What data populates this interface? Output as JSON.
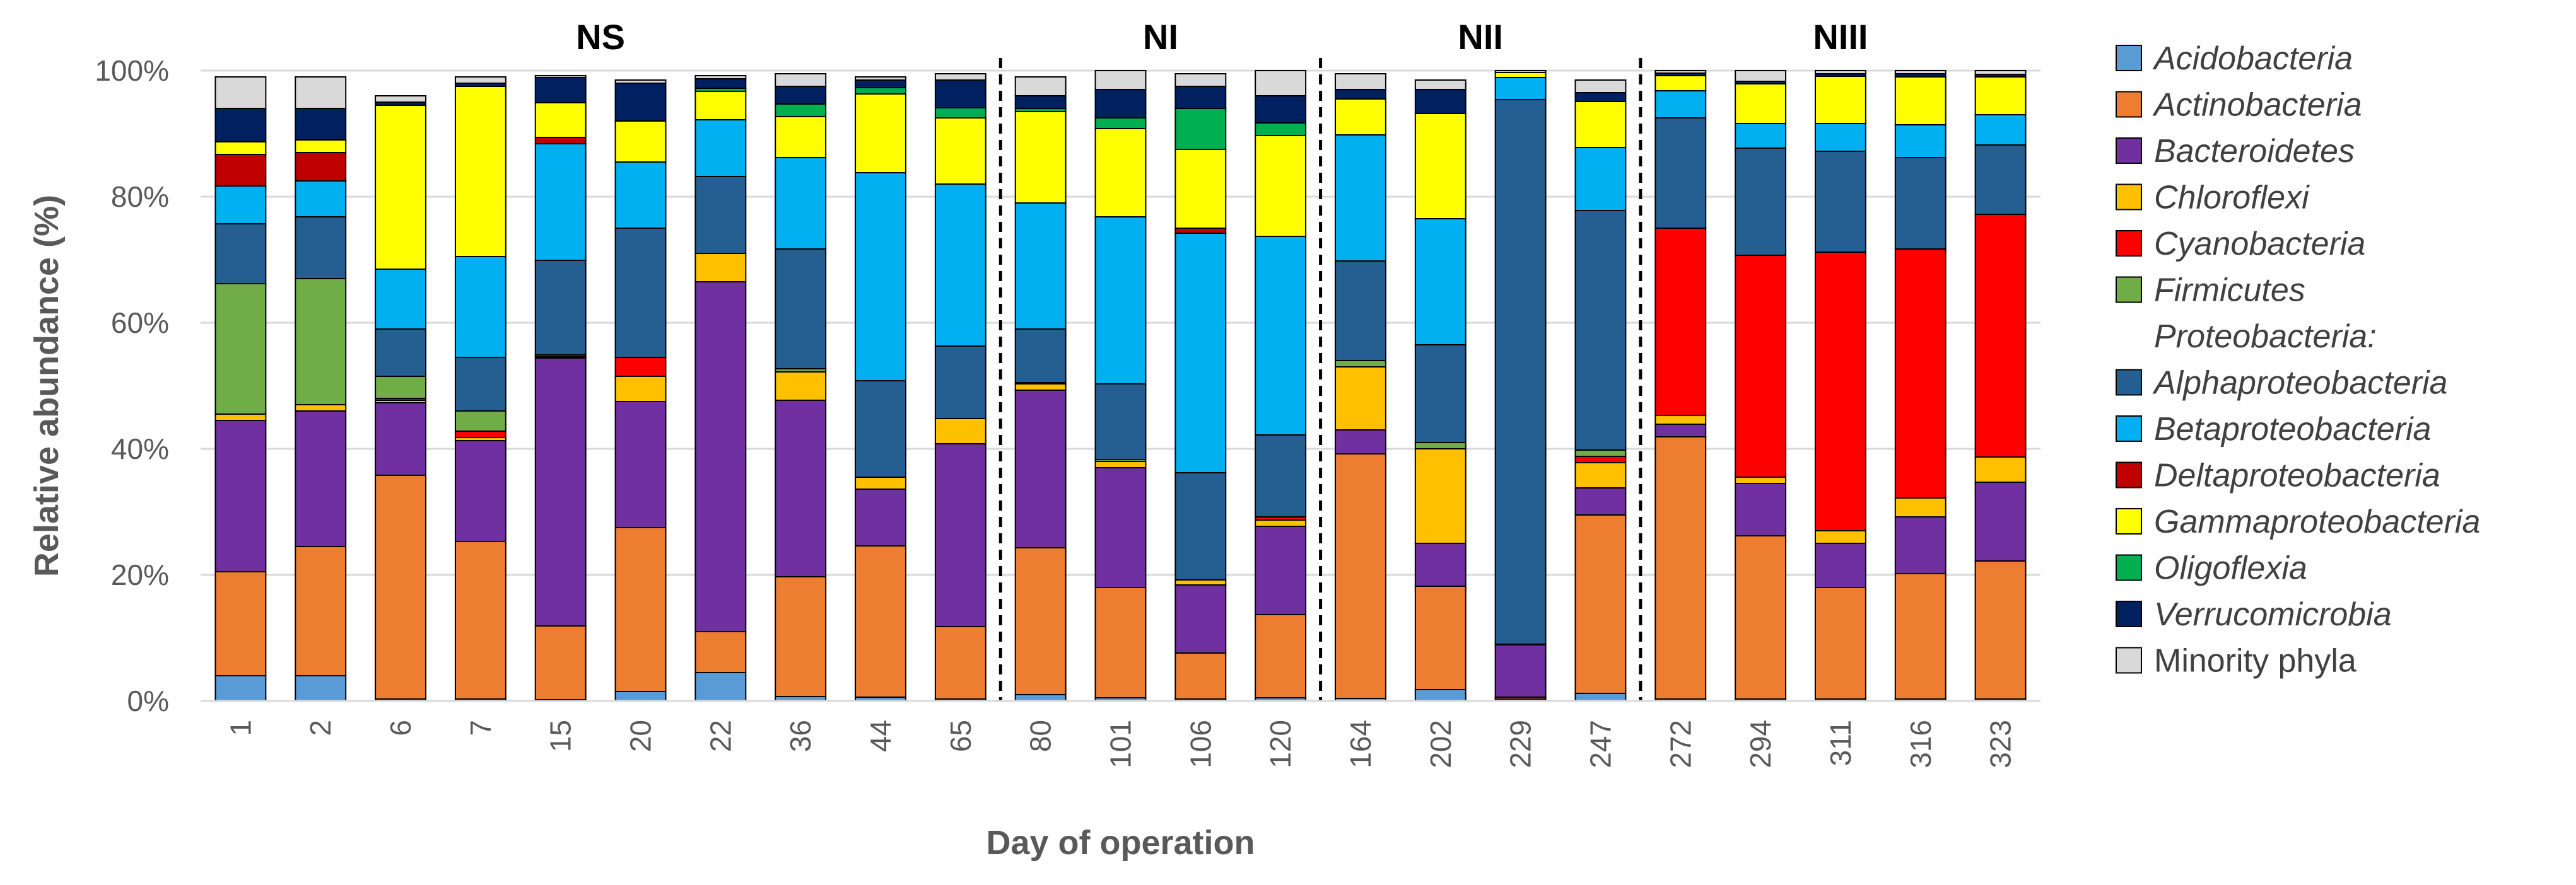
{
  "chart_data": {
    "type": "bar",
    "stacked": true,
    "title": "",
    "xlabel": "Day of operation",
    "ylabel": "Relative abundance (%)",
    "ylim": [
      0,
      100
    ],
    "yticks": [
      "0%",
      "20%",
      "40%",
      "60%",
      "80%",
      "100%"
    ],
    "categories": [
      "1",
      "2",
      "6",
      "7",
      "15",
      "20",
      "22",
      "36",
      "44",
      "65",
      "80",
      "101",
      "106",
      "120",
      "164",
      "202",
      "229",
      "247",
      "272",
      "294",
      "311",
      "316",
      "323"
    ],
    "phases": [
      {
        "label": "NS",
        "start": 0,
        "end": 9
      },
      {
        "label": "NI",
        "start": 10,
        "end": 13
      },
      {
        "label": "NII",
        "start": 14,
        "end": 17
      },
      {
        "label": "NIII",
        "start": 18,
        "end": 22
      }
    ],
    "legend_heading": "Proteobacteria:",
    "series": [
      {
        "name": "Acidobacteria",
        "color": "#5B9BD5",
        "italic": true,
        "values": [
          4,
          4,
          0.3,
          0.3,
          0.2,
          1.5,
          4.5,
          0.7,
          0.6,
          0.3,
          1,
          0.5,
          0.3,
          0.5,
          0.4,
          1.8,
          0.3,
          1.2,
          0.3,
          0.3,
          0.3,
          0.3,
          0.3
        ]
      },
      {
        "name": "Actinobacteria",
        "color": "#ED7D31",
        "italic": true,
        "values": [
          16.5,
          20.5,
          35.5,
          25,
          11.7,
          26,
          6.5,
          19,
          24,
          11.5,
          23.3,
          17.5,
          7.3,
          13.2,
          38.8,
          16.4,
          0.3,
          28.3,
          41.6,
          25.9,
          17.7,
          19.9,
          21.9
        ]
      },
      {
        "name": "Bacteroidetes",
        "color": "#7030A0",
        "italic": true,
        "values": [
          24,
          21.5,
          11.5,
          16,
          42.5,
          20,
          55.5,
          28,
          9,
          29,
          25,
          19,
          10.8,
          14,
          3.8,
          6.8,
          8.3,
          4.3,
          2,
          8.3,
          7,
          9,
          12.5
        ]
      },
      {
        "name": "Chloroflexi",
        "color": "#FFC000",
        "italic": true,
        "values": [
          1,
          1,
          0.4,
          0.5,
          0.2,
          4,
          4.5,
          4.5,
          1.9,
          4,
          1,
          1,
          0.8,
          1,
          10,
          15,
          0.1,
          4,
          1.4,
          1,
          2,
          3,
          4
        ]
      },
      {
        "name": "Cyanobacteria",
        "color": "#FF0000",
        "italic": true,
        "values": [
          0,
          0,
          0.3,
          1,
          0.3,
          3,
          0,
          0,
          0,
          0,
          0,
          0,
          0,
          0.5,
          0,
          0,
          0,
          1,
          29.7,
          35.2,
          44.2,
          39.5,
          38.5
        ]
      },
      {
        "name": "Firmicutes",
        "color": "#70AD47",
        "italic": true,
        "values": [
          20.7,
          20,
          3.5,
          3.2,
          0,
          0,
          0,
          0.5,
          0,
          0,
          0.2,
          0.3,
          0,
          0,
          1,
          1,
          0,
          1,
          0,
          0,
          0,
          0,
          0
        ]
      },
      {
        "name": "Alphaproteobacteria",
        "color": "#255E91",
        "italic": true,
        "values": [
          9.5,
          9.8,
          7.5,
          8.5,
          15,
          20.5,
          12.2,
          19,
          15.3,
          11.5,
          8.5,
          12,
          17,
          13,
          15.8,
          15.5,
          86.4,
          38,
          17.5,
          17,
          16,
          14.5,
          11
        ]
      },
      {
        "name": "Betaproteobacteria",
        "color": "#00B0F0",
        "italic": true,
        "values": [
          6,
          5.7,
          9.5,
          16,
          18.5,
          10.5,
          9,
          14.5,
          33,
          25.7,
          20,
          26.5,
          38,
          31.5,
          20,
          20,
          3.5,
          10,
          4.3,
          3.9,
          4.4,
          5.2,
          4.8
        ]
      },
      {
        "name": "Deltaproteobacteria",
        "color": "#C00000",
        "italic": true,
        "values": [
          5,
          4.5,
          0,
          0,
          1,
          0,
          0,
          0,
          0,
          0,
          0,
          0,
          0.8,
          0,
          0,
          0,
          0,
          0,
          0,
          0,
          0,
          0,
          0
        ]
      },
      {
        "name": "Gammaproteobacteria",
        "color": "#FFFF00",
        "italic": true,
        "values": [
          2,
          2,
          26,
          27,
          5.5,
          6.5,
          4.5,
          6.5,
          12.5,
          10.5,
          14.5,
          14,
          12.5,
          16,
          5.7,
          16.7,
          0.8,
          7.3,
          2.4,
          6.3,
          7.5,
          7.6,
          6
        ]
      },
      {
        "name": "Oligoflexia",
        "color": "#00B050",
        "italic": true,
        "values": [
          0,
          0,
          0,
          0,
          0,
          0,
          0.5,
          2,
          1,
          1.6,
          0.5,
          1.7,
          6.5,
          2,
          0,
          0,
          0,
          0,
          0,
          0,
          0,
          0,
          0
        ]
      },
      {
        "name": "Verrucomicrobia",
        "color": "#002060",
        "italic": true,
        "values": [
          5.3,
          5,
          0.5,
          0.5,
          4,
          6,
          1.5,
          2.8,
          1.2,
          4.4,
          2,
          4.5,
          3.5,
          4.3,
          1.5,
          3.8,
          0,
          1.4,
          0.4,
          0.4,
          0.4,
          0.5,
          0.4
        ]
      },
      {
        "name": "Minority phyla",
        "color": "#D9D9D9",
        "italic": false,
        "values": [
          5,
          5,
          1,
          1,
          0.3,
          0.5,
          0.5,
          2,
          0.5,
          1,
          3,
          3,
          2,
          4,
          2.5,
          1.5,
          0.3,
          2,
          0.4,
          1.7,
          0.5,
          0.5,
          0.6
        ]
      }
    ]
  }
}
